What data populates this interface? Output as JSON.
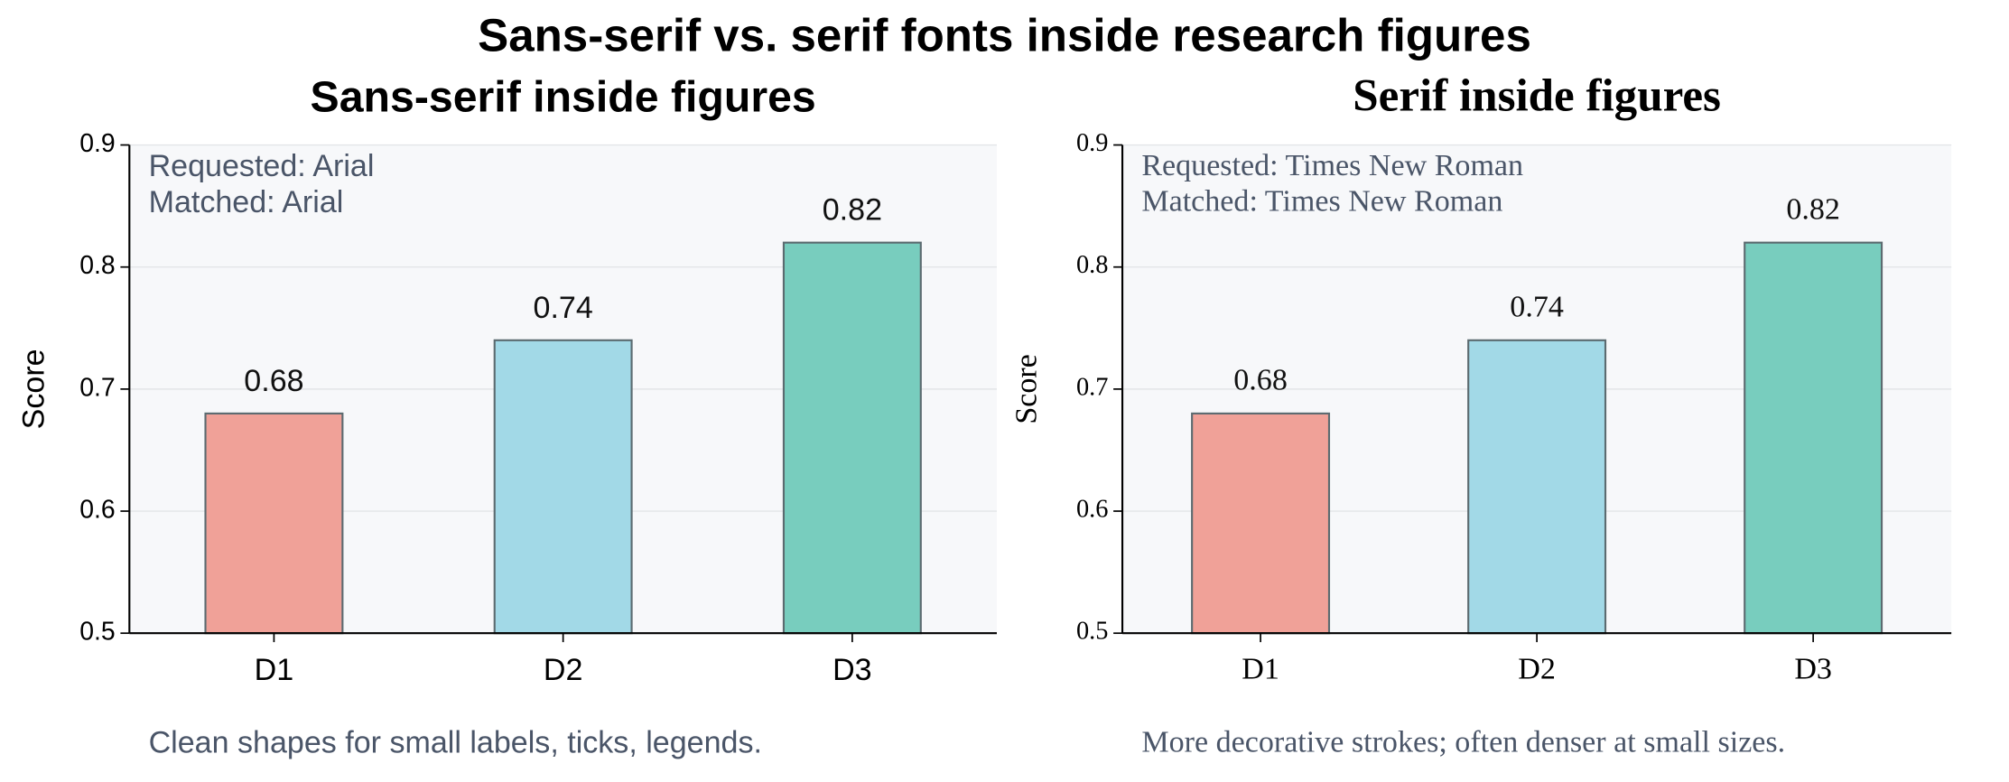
{
  "title": "Sans-serif vs. serif fonts inside research figures",
  "chart_data": [
    {
      "type": "bar",
      "title": "Sans-serif inside figures",
      "font": "sans-serif",
      "ylabel": "Score",
      "categories": [
        "D1",
        "D2",
        "D3"
      ],
      "values": [
        0.68,
        0.74,
        0.82
      ],
      "colors": [
        "#f0a198",
        "#a2d9e7",
        "#78cdbe"
      ],
      "ylim": [
        0.5,
        0.9
      ],
      "yticks": [
        0.5,
        0.6,
        0.7,
        0.8,
        0.9
      ],
      "grid": true,
      "annotations": [
        "Requested: Arial",
        "Matched: Arial"
      ],
      "caption": "Clean shapes for small labels, ticks, legends."
    },
    {
      "type": "bar",
      "title": "Serif inside figures",
      "font": "serif",
      "ylabel": "Score",
      "categories": [
        "D1",
        "D2",
        "D3"
      ],
      "values": [
        0.68,
        0.74,
        0.82
      ],
      "colors": [
        "#f0a198",
        "#a2d9e7",
        "#78cdbe"
      ],
      "ylim": [
        0.5,
        0.9
      ],
      "yticks": [
        0.5,
        0.6,
        0.7,
        0.8,
        0.9
      ],
      "grid": true,
      "annotations": [
        "Requested: Times New Roman",
        "Matched: Times New Roman"
      ],
      "caption": "More decorative strokes; often denser at small sizes."
    }
  ]
}
